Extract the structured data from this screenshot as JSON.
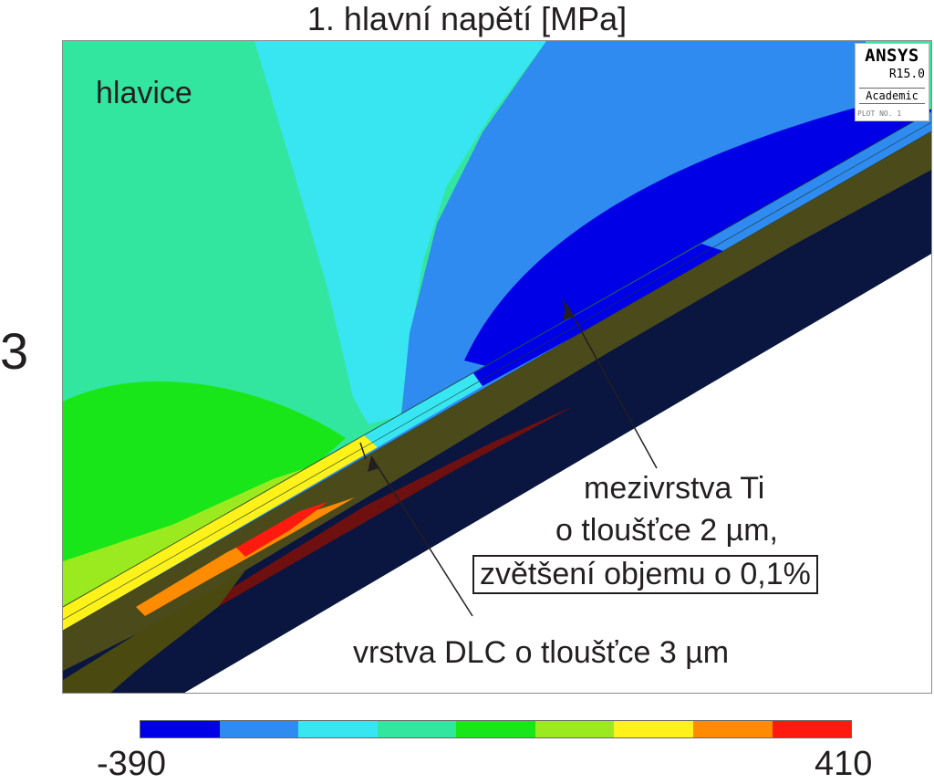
{
  "title": "1. hlavní napětí [MPa]",
  "panel_number": "3",
  "region_label": "hlavice",
  "logo": {
    "name": "ANSYS",
    "version": "R15.0",
    "edition": "Academic",
    "plot_no": "PLOT NO.  1"
  },
  "annotations": {
    "interlayer_line1": "mezivrstva Ti",
    "interlayer_line2": "o tloušťce 2 µm,",
    "interlayer_boxed": "zvětšení objemu o 0,1%",
    "dlc_layer": "vrstva DLC o tloušťce 3 µm"
  },
  "legend": {
    "min": "-390",
    "max": "410",
    "colors": [
      "#0000e6",
      "#2f8bef",
      "#38e6f2",
      "#33e6a0",
      "#18e618",
      "#9bea20",
      "#fff21a",
      "#ff8c00",
      "#ff1a0f"
    ]
  }
}
